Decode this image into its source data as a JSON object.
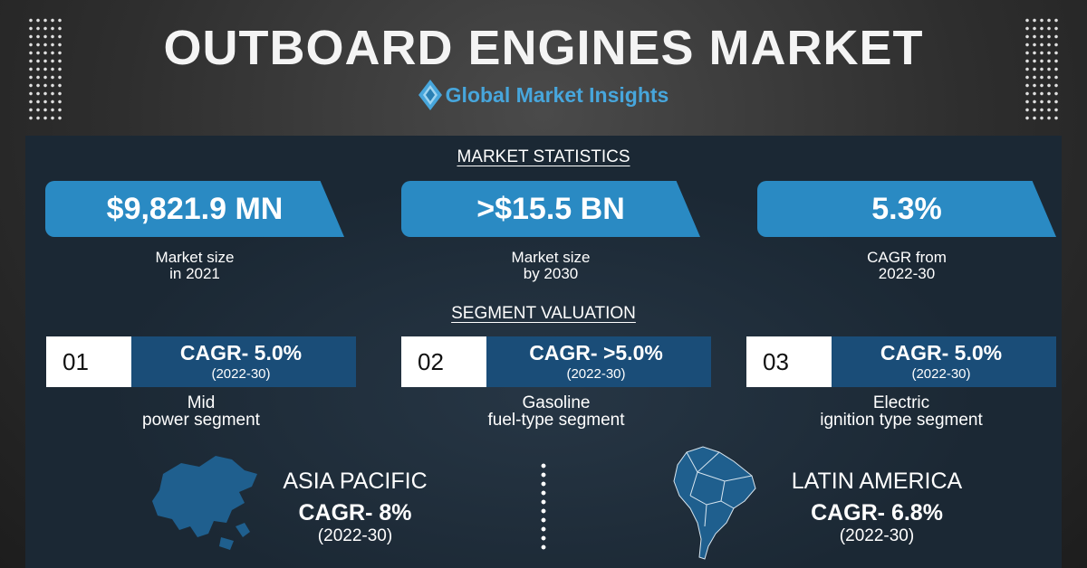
{
  "header": {
    "title": "OUTBOARD ENGINES MARKET",
    "brand": "Global Market Insights"
  },
  "market_statistics": {
    "heading": "MARKET STATISTICS",
    "items": [
      {
        "value": "$9,821.9 MN",
        "caption_line1": "Market size",
        "caption_line2": "in 2021"
      },
      {
        "value": ">$15.5 BN",
        "caption_line1": "Market size",
        "caption_line2": "by 2030"
      },
      {
        "value": "5.3%",
        "caption_line1": "CAGR from",
        "caption_line2": "2022-30"
      }
    ]
  },
  "segment_valuation": {
    "heading": "SEGMENT VALUATION",
    "items": [
      {
        "number": "01",
        "cagr": "CAGR- 5.0%",
        "period": "(2022-30)",
        "caption_line1": "Mid",
        "caption_line2": "power segment"
      },
      {
        "number": "02",
        "cagr": "CAGR- >5.0%",
        "period": "(2022-30)",
        "caption_line1": "Gasoline",
        "caption_line2": "fuel-type segment"
      },
      {
        "number": "03",
        "cagr": "CAGR- 5.0%",
        "period": "(2022-30)",
        "caption_line1": "Electric",
        "caption_line2": "ignition type segment"
      }
    ]
  },
  "regions": [
    {
      "name": "ASIA PACIFIC",
      "cagr": "CAGR- 8%",
      "period": "(2022-30)",
      "icon": "asia-pacific-map-icon"
    },
    {
      "name": "LATIN AMERICA",
      "cagr": "CAGR- 6.8%",
      "period": "(2022-30)",
      "icon": "south-america-map-icon"
    }
  ],
  "colors": {
    "accent_blue": "#2a8ac3",
    "dark_blue": "#1a4d78",
    "panel": "#1b2834",
    "brand_blue": "#47a6dc"
  }
}
